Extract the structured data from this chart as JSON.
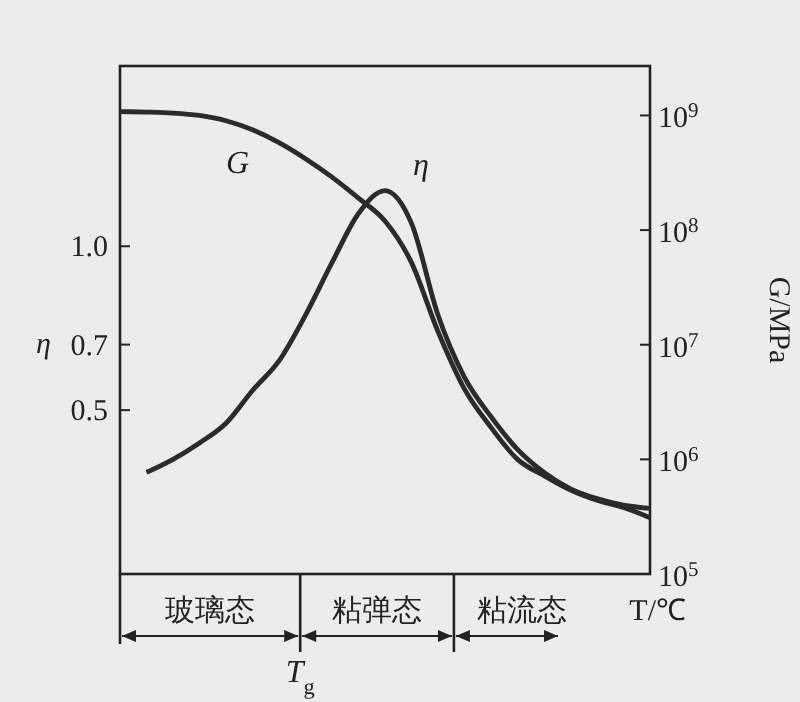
{
  "chart_data": {
    "type": "line",
    "xlabel": "T/℃",
    "ylabel": "η",
    "y2label": "G/MPa",
    "categories": [
      null,
      null,
      null,
      null,
      null,
      null,
      null,
      null,
      null,
      null,
      null,
      null,
      null,
      null,
      null,
      null,
      null,
      null,
      null,
      null,
      null
    ],
    "series": [
      {
        "name": "G",
        "color": "#2b2b2b",
        "axis": "y2",
        "values": [
          1080000000.0,
          1070000000.0,
          1050000000.0,
          1000000000.0,
          900000000.0,
          750000000.0,
          580000000.0,
          420000000.0,
          290000000.0,
          190000000.0,
          120000000.0,
          52000000.0,
          13000000.0,
          4100000.0,
          1900000.0,
          1000000.0,
          720000.0,
          540000.0,
          440000.0,
          380000.0,
          310000.0
        ]
      },
      {
        "name": "η",
        "color": "#2b2b2b",
        "values": [
          null,
          0.31,
          0.35,
          0.4,
          0.46,
          0.56,
          0.65,
          0.79,
          0.95,
          1.1,
          1.17,
          1.07,
          0.79,
          0.6,
          0.48,
          0.38,
          0.31,
          0.26,
          0.23,
          0.21,
          0.2
        ]
      }
    ],
    "ylim": [
      0,
      1.55
    ],
    "yticks": [
      0.5,
      0.7,
      {
        "value": 1,
        "label": "1.0"
      }
    ],
    "y2lim": [
      100000.0,
      2700000000.0
    ],
    "y2ticks": [
      {
        "value": 100000.0,
        "label": "10$^{5}$"
      },
      {
        "value": 1000000.0,
        "label": "10$^{6}$"
      },
      {
        "value": 10000000.0,
        "label": "10$^{7}$"
      },
      {
        "value": 100000000.0,
        "label": "10$^{8}$"
      },
      {
        "value": 1000000000.0,
        "label": "10$^{9}$"
      }
    ],
    "log": "y2",
    "grid": false,
    "marker": "none",
    "line_style": "solid",
    "annotations": [
      "玻璃态",
      "粘弹态",
      "粘流态",
      "T$_{g}$"
    ]
  }
}
